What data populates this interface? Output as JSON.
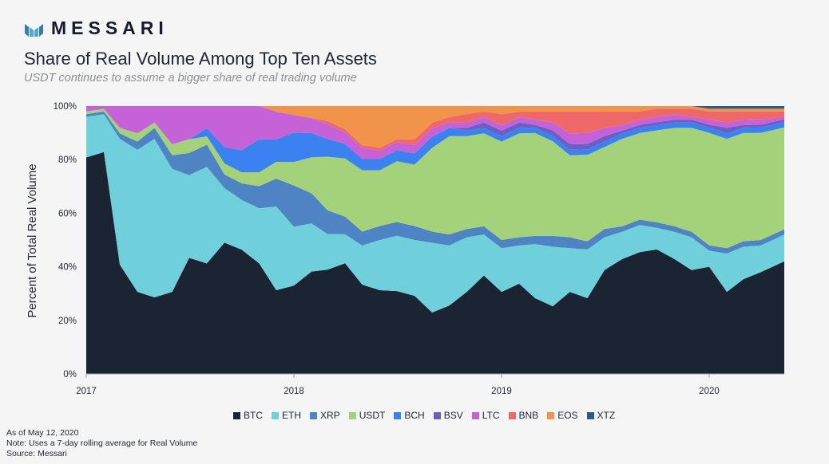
{
  "brand": {
    "name": "MESSARI",
    "logo_icon": "messari-m-logo"
  },
  "footnotes": [
    "As of May 12, 2020",
    "Note: Uses a 7-day rolling average for Real Volume",
    "Source: Messari"
  ],
  "chart_data": {
    "type": "area",
    "stacked": true,
    "title": "Share of Real Volume Among Top Ten Assets",
    "subtitle": "USDT continues to assume a bigger share of real trading volume",
    "ylabel": "Percent of Total Real Volume",
    "xlabel": "",
    "ylim": [
      0,
      100
    ],
    "yticks": [
      "0%",
      "20%",
      "40%",
      "60%",
      "80%",
      "100%"
    ],
    "xticks": [
      "2017",
      "2018",
      "2019",
      "2020"
    ],
    "xlim": [
      "2017-01-01",
      "2020-05-12"
    ],
    "grid": false,
    "legend": "bottom",
    "x": [
      "2017-01",
      "2017-02",
      "2017-03",
      "2017-04",
      "2017-05",
      "2017-06",
      "2017-07",
      "2017-08",
      "2017-09",
      "2017-10",
      "2017-11",
      "2017-12",
      "2018-01",
      "2018-02",
      "2018-03",
      "2018-04",
      "2018-05",
      "2018-06",
      "2018-07",
      "2018-08",
      "2018-09",
      "2018-10",
      "2018-11",
      "2018-12",
      "2019-01",
      "2019-02",
      "2019-03",
      "2019-04",
      "2019-05",
      "2019-06",
      "2019-07",
      "2019-08",
      "2019-09",
      "2019-10",
      "2019-11",
      "2019-12",
      "2020-01",
      "2020-02",
      "2020-03",
      "2020-04",
      "2020-05"
    ],
    "series": [
      {
        "name": "BTC",
        "color": "#1b2433",
        "values": [
          80,
          82,
          40,
          30,
          28,
          30,
          42,
          40,
          48,
          45,
          40,
          30,
          30,
          34,
          35,
          38,
          32,
          30,
          30,
          28,
          22,
          25,
          30,
          36,
          30,
          33,
          28,
          25,
          30,
          28,
          38,
          42,
          45,
          46,
          42,
          38,
          40,
          30,
          35,
          38,
          42
        ]
      },
      {
        "name": "ETH",
        "color": "#6fcfdb",
        "values": [
          15,
          14,
          46,
          52,
          58,
          45,
          30,
          35,
          20,
          18,
          20,
          30,
          20,
          16,
          12,
          10,
          14,
          18,
          20,
          20,
          25,
          22,
          20,
          15,
          16,
          14,
          20,
          22,
          16,
          18,
          12,
          10,
          10,
          8,
          10,
          12,
          6,
          14,
          12,
          10,
          10
        ]
      },
      {
        "name": "XRP",
        "color": "#4f84c4",
        "values": [
          1,
          1,
          2,
          3,
          4,
          5,
          8,
          8,
          5,
          6,
          8,
          10,
          14,
          10,
          8,
          6,
          5,
          5,
          5,
          5,
          4,
          4,
          3,
          3,
          3,
          3,
          3,
          4,
          4,
          3,
          3,
          2,
          2,
          2,
          2,
          2,
          2,
          2,
          2,
          2,
          2
        ]
      },
      {
        "name": "USDT",
        "color": "#a3d27b",
        "values": [
          1,
          1,
          2,
          3,
          2,
          4,
          5,
          3,
          4,
          4,
          5,
          6,
          8,
          12,
          18,
          20,
          22,
          20,
          22,
          22,
          30,
          36,
          34,
          34,
          36,
          38,
          38,
          35,
          30,
          32,
          30,
          32,
          32,
          34,
          36,
          38,
          42,
          40,
          40,
          40,
          38
        ]
      },
      {
        "name": "BCH",
        "color": "#3b82f0",
        "values": [
          0,
          0,
          0,
          0,
          0,
          0,
          0,
          3,
          6,
          8,
          12,
          8,
          10,
          8,
          6,
          5,
          4,
          4,
          4,
          4,
          4,
          3,
          2,
          2,
          2,
          2,
          2,
          2,
          2,
          2,
          2,
          2,
          2,
          2,
          2,
          2,
          2,
          2,
          2,
          2,
          2
        ]
      },
      {
        "name": "BSV",
        "color": "#6a5fc4",
        "values": [
          0,
          0,
          0,
          0,
          0,
          0,
          0,
          0,
          0,
          0,
          0,
          0,
          0,
          0,
          0,
          0,
          0,
          0,
          0,
          0,
          0,
          0,
          1,
          2,
          2,
          2,
          1,
          2,
          2,
          2,
          2,
          1,
          1,
          1,
          1,
          1,
          1,
          2,
          1,
          1,
          1
        ]
      },
      {
        "name": "LTC",
        "color": "#c562d8",
        "values": [
          2,
          1,
          8,
          10,
          6,
          14,
          12,
          8,
          15,
          16,
          12,
          10,
          6,
          5,
          5,
          4,
          4,
          3,
          3,
          3,
          3,
          2,
          2,
          2,
          2,
          2,
          2,
          3,
          4,
          4,
          3,
          2,
          2,
          2,
          2,
          1,
          2,
          2,
          2,
          2,
          1
        ]
      },
      {
        "name": "BNB",
        "color": "#ee6868",
        "values": [
          0,
          0,
          0,
          0,
          0,
          0,
          0,
          0,
          0,
          0,
          0,
          0,
          0,
          0,
          1,
          1,
          1,
          1,
          1,
          2,
          2,
          2,
          3,
          2,
          4,
          2,
          3,
          4,
          8,
          8,
          6,
          5,
          3,
          3,
          2,
          3,
          3,
          4,
          3,
          3,
          2
        ]
      },
      {
        "name": "EOS",
        "color": "#f1934a",
        "values": [
          0,
          0,
          0,
          0,
          0,
          0,
          0,
          0,
          0,
          0,
          0,
          2,
          3,
          4,
          5,
          8,
          14,
          15,
          12,
          12,
          6,
          4,
          3,
          2,
          3,
          2,
          2,
          2,
          2,
          2,
          2,
          2,
          2,
          1,
          1,
          1,
          1,
          1,
          1,
          1,
          1
        ]
      },
      {
        "name": "XTZ",
        "color": "#2e5b86",
        "values": [
          0,
          0,
          0,
          0,
          0,
          0,
          0,
          0,
          0,
          0,
          0,
          0,
          0,
          0,
          0,
          0,
          0,
          0,
          0,
          0,
          0,
          0,
          0,
          0,
          0,
          0,
          0,
          0,
          0,
          0,
          0,
          0,
          0,
          0,
          0,
          0,
          1,
          1,
          1,
          1,
          1
        ]
      }
    ]
  }
}
